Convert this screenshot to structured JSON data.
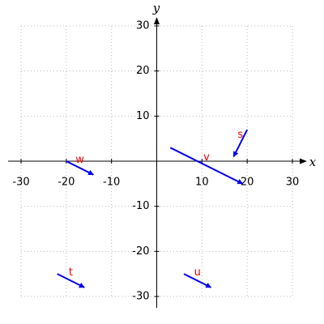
{
  "chart_data": {
    "type": "vector",
    "xlabel": "x",
    "ylabel": "y",
    "xlim": [
      -30,
      30
    ],
    "ylim": [
      -30,
      30
    ],
    "xticks": [
      -30,
      -20,
      -10,
      10,
      20,
      30
    ],
    "yticks": [
      -30,
      -20,
      -10,
      10,
      20,
      30
    ],
    "grid": true,
    "arrow_color": "#0000ee",
    "label_color": "#ee0000",
    "series": [
      {
        "name": "s",
        "x": [
          20,
          17
        ],
        "y": [
          7,
          1
        ]
      },
      {
        "name": "v",
        "x": [
          3,
          19
        ],
        "y": [
          3,
          -5
        ]
      },
      {
        "name": "w",
        "x": [
          -20,
          -14
        ],
        "y": [
          0,
          -3
        ]
      },
      {
        "name": "t",
        "x": [
          -22,
          -16
        ],
        "y": [
          -25,
          -28
        ]
      },
      {
        "name": "u",
        "x": [
          6,
          12
        ],
        "y": [
          -25,
          -28
        ]
      }
    ]
  }
}
